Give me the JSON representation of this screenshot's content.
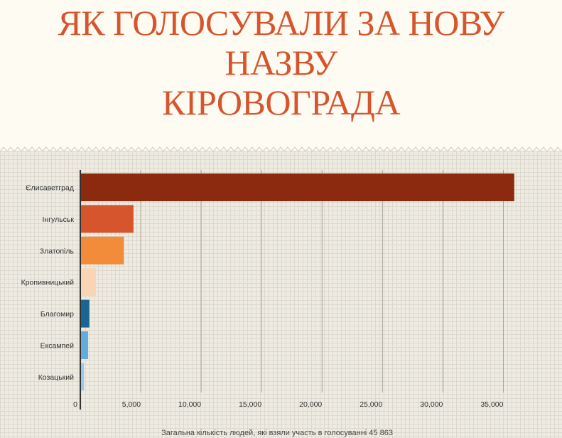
{
  "title": "ЯК ГОЛОСУВАЛИ ЗА НОВУ\nНАЗВУ\nКІРОВОГРАДА",
  "footnote": "Загальна кількість людей, які взяли участь в голосуванні 45 863",
  "colors": {
    "title": "#d6552d",
    "background": "#fdfbf2",
    "chart_background": "#eeebe3",
    "grid": "#dcd8cd",
    "axis": "#333333"
  },
  "chart_data": {
    "type": "bar",
    "orientation": "horizontal",
    "title": "ЯК ГОЛОСУВАЛИ ЗА НОВУ НАЗВУ КІРОВОГРАДА",
    "categories": [
      "Єлисаветград",
      "Інгульськ",
      "Златопіль",
      "Кропивницький",
      "Благомир",
      "Ексампей",
      "Козацький"
    ],
    "values": [
      35900,
      4400,
      3600,
      1300,
      750,
      650,
      300
    ],
    "bar_colors": [
      "#8b2a0e",
      "#d6552d",
      "#f28b3a",
      "#f9d5b4",
      "#1d6591",
      "#64addb",
      "#99c9ea"
    ],
    "xlim": [
      0,
      36500
    ],
    "xticks": [
      0,
      5000,
      10000,
      15000,
      20000,
      25000,
      30000,
      35000
    ],
    "xtick_labels": [
      "0",
      "5,000",
      "10,000",
      "15,000",
      "20,000",
      "25,000",
      "30,000",
      "35,000"
    ],
    "xlabel": "",
    "ylabel": "",
    "grid": true,
    "legend": "none"
  }
}
